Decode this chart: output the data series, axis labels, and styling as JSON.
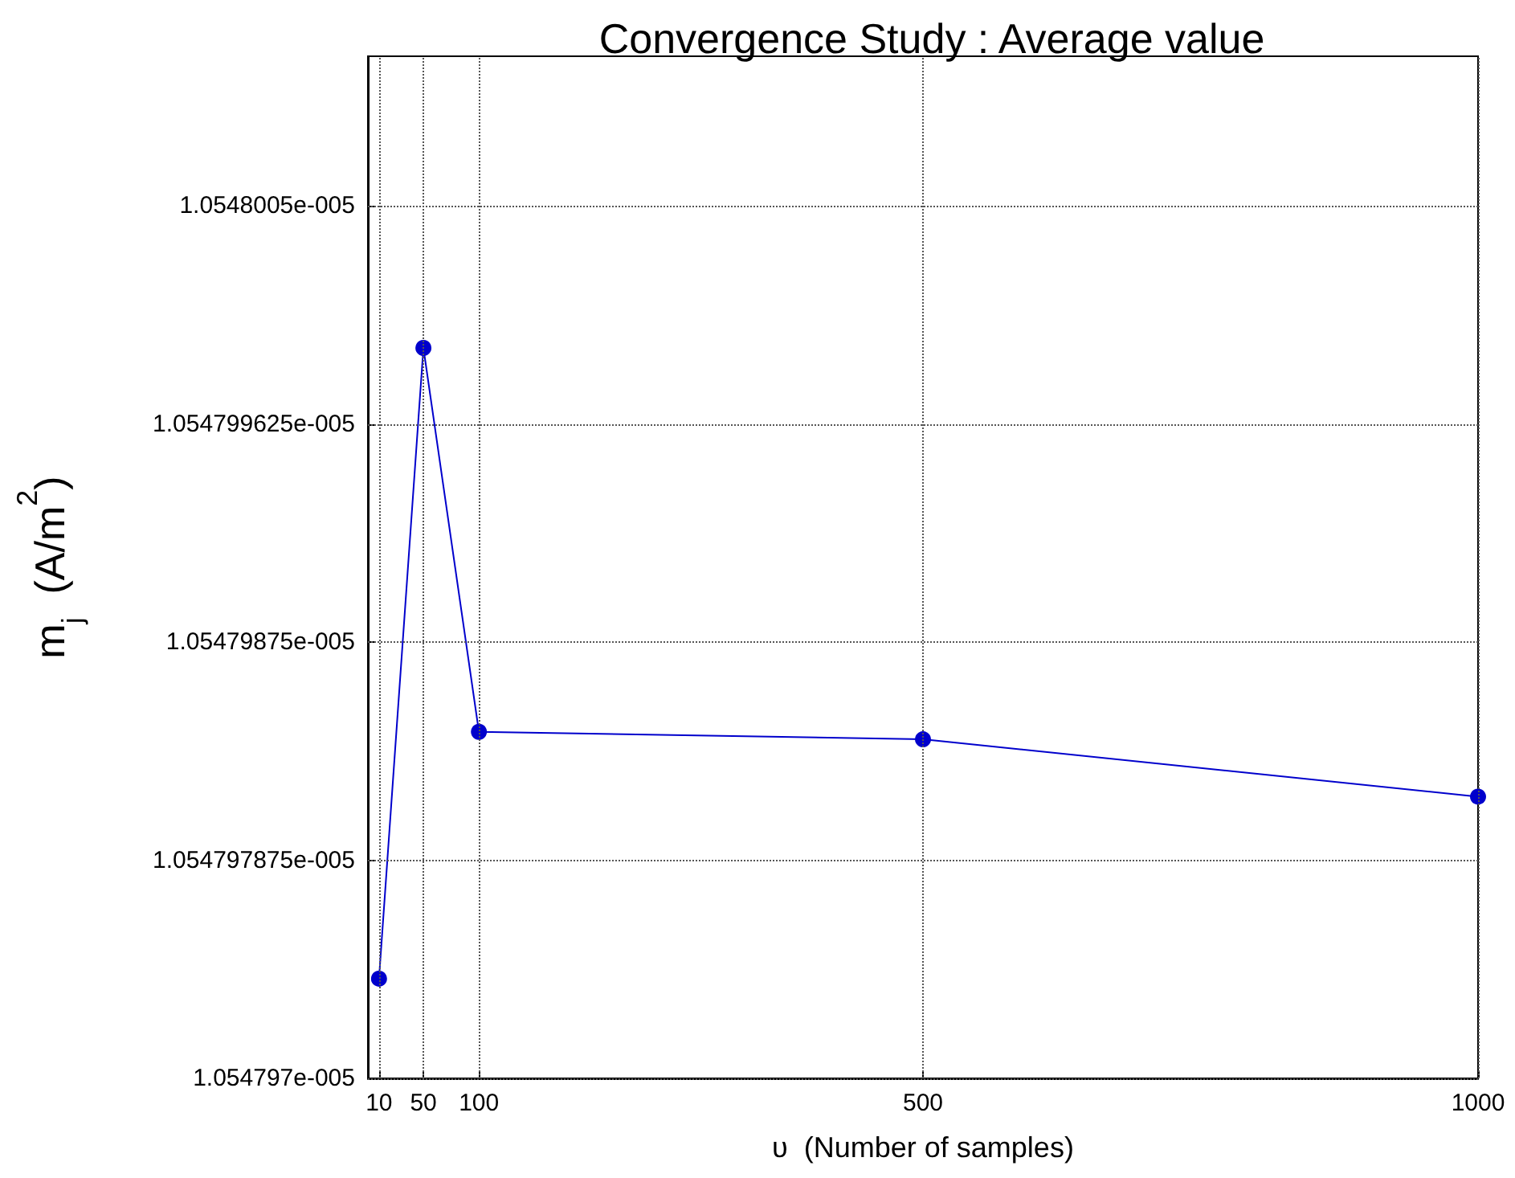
{
  "chart_data": {
    "type": "line",
    "title": "Convergence Study : Average value",
    "xlabel": "υ  (Number of samples)",
    "ylabel": "m$_{j}$  (A/m$^{2}$)",
    "x": [
      10,
      50,
      100,
      500,
      1000
    ],
    "series": [
      {
        "color": "#0000cc",
        "values": [
          1.0547974e-05,
          1.05479993e-05,
          1.05479839e-05,
          1.05479836e-05,
          1.05479813e-05
        ]
      }
    ],
    "xlim": [
      0,
      1000
    ],
    "xticks": [
      10,
      50,
      100,
      500,
      1000
    ],
    "ylim": [
      1.054797e-05,
      1.0548011e-05
    ],
    "yticks": [
      {
        "value": 1.054797e-05,
        "label": "1.054797e-005"
      },
      {
        "value": 1.054797875e-05,
        "label": "1.054797875e-005"
      },
      {
        "value": 1.05479875e-05,
        "label": "1.05479875e-005"
      },
      {
        "value": 1.054799625e-05,
        "label": "1.054799625e-005"
      },
      {
        "value": 1.0548005e-05,
        "label": "1.0548005e-005"
      }
    ],
    "grid": true,
    "marker": "circle",
    "line_style": "solid"
  }
}
